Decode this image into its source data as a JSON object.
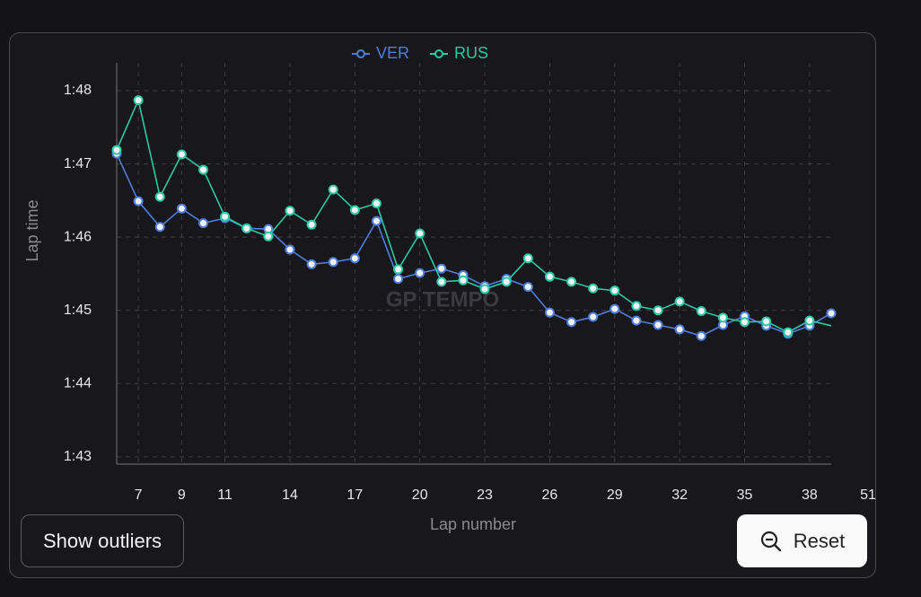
{
  "chart_data": {
    "type": "line",
    "x_label": "Lap number",
    "y_label": "Lap time",
    "watermark": "GP TEMPO",
    "x": [
      6,
      7,
      8,
      9,
      10,
      11,
      12,
      13,
      14,
      15,
      16,
      17,
      18,
      19,
      20,
      21,
      22,
      23,
      24,
      25,
      26,
      27,
      28,
      29,
      30,
      31,
      32,
      33,
      34,
      35,
      36,
      37,
      38,
      39
    ],
    "series": [
      {
        "name": "VER",
        "color": "#4f7fdb",
        "values": [
          107.14,
          106.49,
          106.14,
          106.39,
          106.19,
          106.26,
          106.12,
          106.11,
          105.83,
          105.63,
          105.66,
          105.71,
          106.22,
          105.43,
          105.51,
          105.57,
          105.48,
          105.33,
          105.43,
          105.32,
          104.97,
          104.84,
          104.91,
          105.02,
          104.86,
          104.8,
          104.74,
          104.65,
          104.8,
          104.92,
          104.79,
          104.68,
          104.79,
          104.96
        ]
      },
      {
        "name": "RUS",
        "color": "#2cc9a2",
        "values": [
          107.19,
          107.87,
          106.55,
          107.13,
          106.92,
          106.28,
          106.12,
          106.01,
          106.36,
          106.17,
          106.65,
          106.37,
          106.46,
          105.56,
          106.05,
          105.39,
          105.41,
          105.29,
          105.39,
          105.71,
          105.46,
          105.39,
          105.3,
          105.27,
          105.06,
          105.0,
          105.12,
          104.99,
          104.9,
          104.84,
          104.85,
          104.7,
          104.86,
          104.79
        ]
      }
    ],
    "xlim": [
      6,
      39
    ],
    "xticks": [
      7,
      9,
      11,
      14,
      17,
      20,
      23,
      26,
      29,
      32,
      35,
      38
    ],
    "x_end_label": "51",
    "ylim": [
      102.9,
      108.38
    ],
    "yticks": [
      {
        "value": 103,
        "label": "1:43"
      },
      {
        "value": 104,
        "label": "1:44"
      },
      {
        "value": 105,
        "label": "1:45"
      },
      {
        "value": 106,
        "label": "1:46"
      },
      {
        "value": 107,
        "label": "1:47"
      },
      {
        "value": 108,
        "label": "1:48"
      }
    ],
    "grid": true,
    "legend": "top"
  },
  "buttons": {
    "outliers": "Show outliers",
    "reset": "Reset"
  }
}
